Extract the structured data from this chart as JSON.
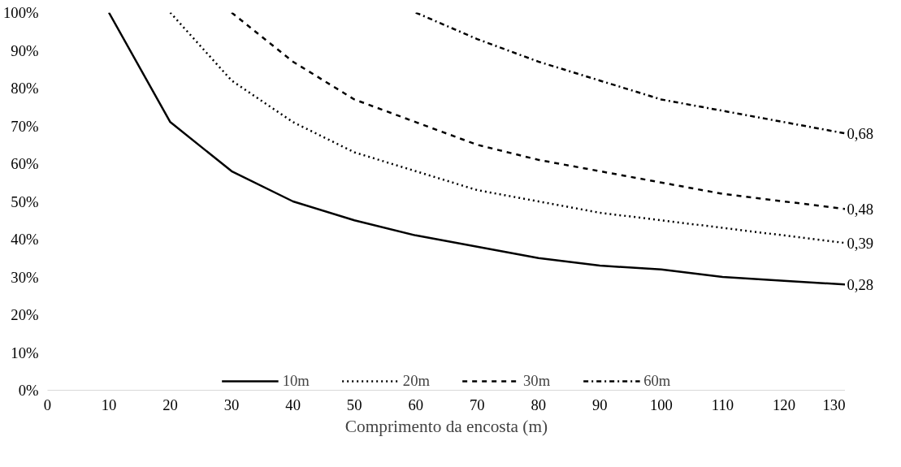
{
  "chart_data": {
    "type": "line",
    "xlabel": "Comprimento da encosta (m)",
    "xlim": [
      0,
      130
    ],
    "xticks": [
      0,
      10,
      20,
      30,
      40,
      50,
      60,
      70,
      80,
      90,
      100,
      110,
      120,
      130
    ],
    "ylim": [
      0,
      1
    ],
    "yticks": [
      {
        "value": 0,
        "label": "0%"
      },
      {
        "value": 0.1,
        "label": "10%"
      },
      {
        "value": 0.2,
        "label": "20%"
      },
      {
        "value": 0.3,
        "label": "30%"
      },
      {
        "value": 0.4,
        "label": "40%"
      },
      {
        "value": 0.5,
        "label": "50%"
      },
      {
        "value": 0.6,
        "label": "60%"
      },
      {
        "value": 0.7,
        "label": "70%"
      },
      {
        "value": 0.8,
        "label": "80%"
      },
      {
        "value": 0.9,
        "label": "90%"
      },
      {
        "value": 1,
        "label": "100%"
      }
    ],
    "grid": false,
    "legend": "bottom",
    "marker": "none",
    "series": [
      {
        "name": "10m",
        "color": "#000000",
        "line_style": "solid",
        "x": [
          10,
          20,
          30,
          40,
          50,
          60,
          70,
          80,
          90,
          100,
          110,
          120,
          130
        ],
        "values": [
          1.0,
          0.71,
          0.58,
          0.5,
          0.45,
          0.41,
          0.38,
          0.35,
          0.33,
          0.32,
          0.3,
          0.29,
          0.28
        ],
        "value_labels": [
          null,
          null,
          null,
          null,
          null,
          null,
          null,
          null,
          null,
          null,
          null,
          null,
          "0,28"
        ]
      },
      {
        "name": "20m",
        "color": "#000000",
        "line_style": "dotted",
        "x": [
          20,
          30,
          40,
          50,
          60,
          70,
          80,
          90,
          100,
          110,
          120,
          130
        ],
        "values": [
          1.0,
          0.82,
          0.71,
          0.63,
          0.58,
          0.53,
          0.5,
          0.47,
          0.45,
          0.43,
          0.41,
          0.39
        ],
        "value_labels": [
          null,
          null,
          null,
          null,
          null,
          null,
          null,
          null,
          null,
          null,
          null,
          "0,39"
        ]
      },
      {
        "name": "30m",
        "color": "#000000",
        "line_style": "dashed",
        "x": [
          30,
          40,
          50,
          60,
          70,
          80,
          90,
          100,
          110,
          120,
          130
        ],
        "values": [
          1.0,
          0.87,
          0.77,
          0.71,
          0.65,
          0.61,
          0.58,
          0.55,
          0.52,
          0.5,
          0.48
        ],
        "value_labels": [
          null,
          null,
          null,
          null,
          null,
          null,
          null,
          null,
          null,
          null,
          "0,48"
        ]
      },
      {
        "name": "60m",
        "color": "#000000",
        "line_style": "dashdot",
        "x": [
          60,
          70,
          80,
          90,
          100,
          110,
          120,
          130
        ],
        "values": [
          1.0,
          0.93,
          0.87,
          0.82,
          0.77,
          0.74,
          0.71,
          0.68
        ],
        "value_labels": [
          null,
          null,
          null,
          null,
          null,
          null,
          null,
          "0,68"
        ]
      }
    ]
  }
}
